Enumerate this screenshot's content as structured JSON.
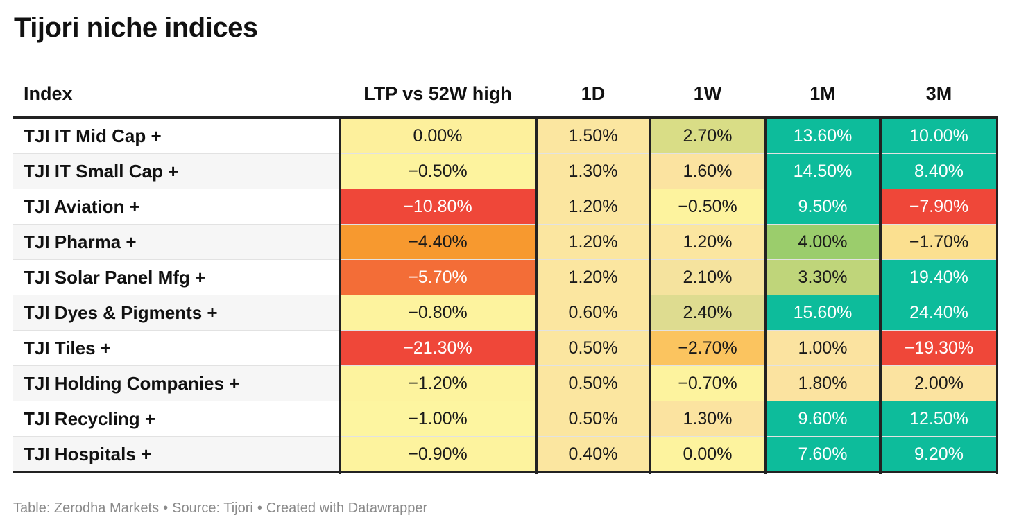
{
  "title": "Tijori niche indices",
  "footer": {
    "table_credit": "Table: Zerodha Markets",
    "source": "Source: Tijori",
    "created": "Created with Datawrapper",
    "separator": "•"
  },
  "colors": {
    "dark_red": "#ef4739",
    "orange_red": "#f36d37",
    "orange": "#f7992f",
    "light_orange": "#fbc45f",
    "pale_yellow": "#fdf39e",
    "cream": "#fbe3a0",
    "olive_yellow": "#d9dd86",
    "light_green": "#bfd57a",
    "green": "#9bcd6c",
    "teal": "#0dbc9b"
  },
  "chart_data": {
    "type": "table",
    "columns": [
      "Index",
      "LTP vs 52W high",
      "1D",
      "1W",
      "1M",
      "3M"
    ],
    "rows": [
      {
        "name": "TJI IT Mid Cap +",
        "values": [
          "0.00%",
          "1.50%",
          "2.70%",
          "13.60%",
          "10.00%"
        ],
        "numbers": [
          0.0,
          1.5,
          2.7,
          13.6,
          10.0
        ]
      },
      {
        "name": "TJI IT Small Cap +",
        "values": [
          "−0.50%",
          "1.30%",
          "1.60%",
          "14.50%",
          "8.40%"
        ],
        "numbers": [
          -0.5,
          1.3,
          1.6,
          14.5,
          8.4
        ]
      },
      {
        "name": "TJI Aviation +",
        "values": [
          "−10.80%",
          "1.20%",
          "−0.50%",
          "9.50%",
          "−7.90%"
        ],
        "numbers": [
          -10.8,
          1.2,
          -0.5,
          9.5,
          -7.9
        ]
      },
      {
        "name": "TJI Pharma +",
        "values": [
          "−4.40%",
          "1.20%",
          "1.20%",
          "4.00%",
          "−1.70%"
        ],
        "numbers": [
          -4.4,
          1.2,
          1.2,
          4.0,
          -1.7
        ]
      },
      {
        "name": "TJI Solar Panel Mfg +",
        "values": [
          "−5.70%",
          "1.20%",
          "2.10%",
          "3.30%",
          "19.40%"
        ],
        "numbers": [
          -5.7,
          1.2,
          2.1,
          3.3,
          19.4
        ]
      },
      {
        "name": "TJI Dyes & Pigments +",
        "values": [
          "−0.80%",
          "0.60%",
          "2.40%",
          "15.60%",
          "24.40%"
        ],
        "numbers": [
          -0.8,
          0.6,
          2.4,
          15.6,
          24.4
        ]
      },
      {
        "name": "TJI Tiles +",
        "values": [
          "−21.30%",
          "0.50%",
          "−2.70%",
          "1.00%",
          "−19.30%"
        ],
        "numbers": [
          -21.3,
          0.5,
          -2.7,
          1.0,
          -19.3
        ]
      },
      {
        "name": "TJI Holding Companies +",
        "values": [
          "−1.20%",
          "0.50%",
          "−0.70%",
          "1.80%",
          "2.00%"
        ],
        "numbers": [
          -1.2,
          0.5,
          -0.7,
          1.8,
          2.0
        ]
      },
      {
        "name": "TJI Recycling +",
        "values": [
          "−1.00%",
          "0.50%",
          "1.30%",
          "9.60%",
          "12.50%"
        ],
        "numbers": [
          -1.0,
          0.5,
          1.3,
          9.6,
          12.5
        ]
      },
      {
        "name": "TJI Hospitals +",
        "values": [
          "−0.90%",
          "0.40%",
          "0.00%",
          "7.60%",
          "9.20%"
        ],
        "numbers": [
          -0.9,
          0.4,
          0.0,
          7.6,
          9.2
        ]
      }
    ],
    "cell_colors": [
      [
        "#fdf09c",
        "#fbe6a0",
        "#d9dd86",
        "#0dbc9b",
        "#0dbc9b"
      ],
      [
        "#fdf39e",
        "#fbe6a0",
        "#fbe3a0",
        "#0dbc9b",
        "#0dbc9b"
      ],
      [
        "#ef4739",
        "#fbe6a0",
        "#fdf39e",
        "#0dbc9b",
        "#ef4739"
      ],
      [
        "#f7992f",
        "#fbe6a0",
        "#fbe6a0",
        "#9bcd6c",
        "#fbe090"
      ],
      [
        "#f36d37",
        "#fbe6a0",
        "#f5e39e",
        "#bfd57a",
        "#0dbc9b"
      ],
      [
        "#fdf39e",
        "#fbe6a0",
        "#dedc90",
        "#0dbc9b",
        "#0dbc9b"
      ],
      [
        "#ef4739",
        "#fbe6a0",
        "#fbc45f",
        "#fbe3a0",
        "#ef4739"
      ],
      [
        "#fdf39e",
        "#fbe6a0",
        "#fdf39e",
        "#fbe3a0",
        "#fbe3a0"
      ],
      [
        "#fdf5a0",
        "#fbe6a0",
        "#fbe3a0",
        "#0dbc9b",
        "#0dbc9b"
      ],
      [
        "#fdf39e",
        "#fbe6a0",
        "#fdf39e",
        "#0dbc9b",
        "#0dbc9b"
      ]
    ],
    "light_text_cells": [
      [
        false,
        false,
        false,
        true,
        true
      ],
      [
        false,
        false,
        false,
        true,
        true
      ],
      [
        true,
        false,
        false,
        true,
        true
      ],
      [
        false,
        false,
        false,
        false,
        false
      ],
      [
        true,
        false,
        false,
        false,
        true
      ],
      [
        false,
        false,
        false,
        true,
        true
      ],
      [
        true,
        false,
        false,
        false,
        true
      ],
      [
        false,
        false,
        false,
        false,
        false
      ],
      [
        false,
        false,
        false,
        true,
        true
      ],
      [
        false,
        false,
        false,
        true,
        true
      ]
    ]
  }
}
